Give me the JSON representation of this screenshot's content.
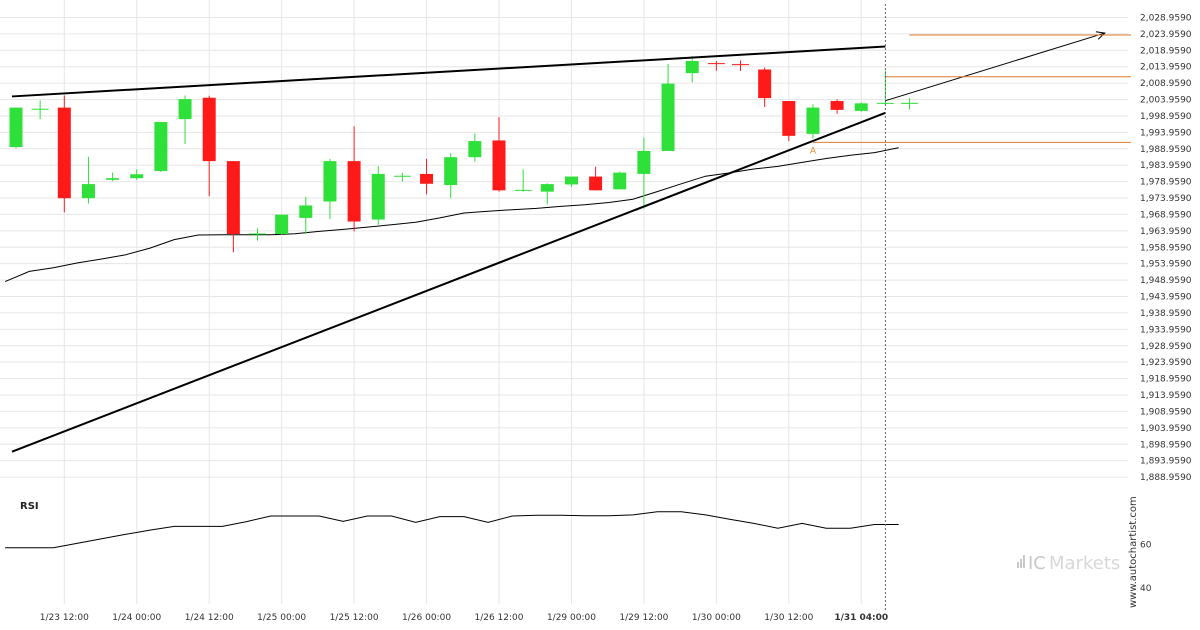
{
  "chart_data": {
    "type": "candlestick",
    "xlabel": "",
    "ylabel": "",
    "ylim": [
      1883.959,
      2031.959
    ],
    "y_ticks": [
      "2,028.9590",
      "2,023.9590",
      "2,018.9590",
      "2,013.9590",
      "2,008.9590",
      "2,003.9590",
      "1,998.9590",
      "1,993.9590",
      "1,988.9590",
      "1,983.9590",
      "1,978.9590",
      "1,973.9590",
      "1,968.9590",
      "1,963.9590",
      "1,958.9590",
      "1,953.9590",
      "1,948.9590",
      "1,943.9590",
      "1,938.9590",
      "1,933.9590",
      "1,928.9590",
      "1,923.9590",
      "1,918.9590",
      "1,913.9590",
      "1,908.9590",
      "1,903.9590",
      "1,898.9590",
      "1,893.9590",
      "1,888.9590"
    ],
    "y_tick_values": [
      2028.959,
      2023.959,
      2018.959,
      2013.959,
      2008.959,
      2003.959,
      1998.959,
      1993.959,
      1988.959,
      1983.959,
      1978.959,
      1973.959,
      1968.959,
      1963.959,
      1958.959,
      1953.959,
      1948.959,
      1943.959,
      1938.959,
      1933.959,
      1928.959,
      1923.959,
      1918.959,
      1913.959,
      1908.959,
      1903.959,
      1898.959,
      1893.959,
      1888.959
    ],
    "x_ticks": [
      {
        "label": "1/23 12:00",
        "index": 2
      },
      {
        "label": "1/24 00:00",
        "index": 5
      },
      {
        "label": "1/24 12:00",
        "index": 8
      },
      {
        "label": "1/25 00:00",
        "index": 11
      },
      {
        "label": "1/25 12:00",
        "index": 14
      },
      {
        "label": "1/26 00:00",
        "index": 17
      },
      {
        "label": "1/26 12:00",
        "index": 20
      },
      {
        "label": "1/29 00:00",
        "index": 23
      },
      {
        "label": "1/29 12:00",
        "index": 26
      },
      {
        "label": "1/30 00:00",
        "index": 29
      },
      {
        "label": "1/30 12:00",
        "index": 32
      },
      {
        "label": "1/31 04:00",
        "index": 35,
        "bold": true
      }
    ],
    "candles": [
      {
        "o": 1989.5,
        "h": 2001.5,
        "l": 1989.0,
        "c": 2001.5
      },
      {
        "o": 2001.0,
        "h": 2003.7,
        "l": 1998.0,
        "c": 2001.0
      },
      {
        "o": 2001.5,
        "h": 2005.2,
        "l": 1969.6,
        "c": 1973.9
      },
      {
        "o": 1973.9,
        "h": 1986.5,
        "l": 1972.3,
        "c": 1978.2
      },
      {
        "o": 1979.5,
        "h": 1981.7,
        "l": 1979.1,
        "c": 1980.0
      },
      {
        "o": 1980.0,
        "h": 1982.7,
        "l": 1979.5,
        "c": 1981.2
      },
      {
        "o": 1982.2,
        "h": 1997.1,
        "l": 1981.9,
        "c": 1997.1
      },
      {
        "o": 1998.0,
        "h": 2005.2,
        "l": 1990.4,
        "c": 2004.1
      },
      {
        "o": 2004.5,
        "h": 2005.1,
        "l": 1974.5,
        "c": 1985.2
      },
      {
        "o": 1985.2,
        "h": 1985.2,
        "l": 1957.4,
        "c": 1963.0
      },
      {
        "o": 1963.0,
        "h": 1964.7,
        "l": 1961.0,
        "c": 1963.0
      },
      {
        "o": 1963.0,
        "h": 1968.9,
        "l": 1962.8,
        "c": 1968.9
      },
      {
        "o": 1967.9,
        "h": 1974.3,
        "l": 1963.0,
        "c": 1971.7
      },
      {
        "o": 1972.9,
        "h": 1985.9,
        "l": 1967.5,
        "c": 1985.2
      },
      {
        "o": 1985.2,
        "h": 1995.8,
        "l": 1963.8,
        "c": 1966.8
      },
      {
        "o": 1967.4,
        "h": 1983.7,
        "l": 1965.8,
        "c": 1981.3
      },
      {
        "o": 1980.6,
        "h": 1981.7,
        "l": 1979.0,
        "c": 1980.6
      },
      {
        "o": 1981.3,
        "h": 1985.9,
        "l": 1975.1,
        "c": 1978.3
      },
      {
        "o": 1977.9,
        "h": 1987.6,
        "l": 1974.0,
        "c": 1986.4
      },
      {
        "o": 1986.4,
        "h": 1993.6,
        "l": 1985.0,
        "c": 1991.3
      },
      {
        "o": 1991.5,
        "h": 1998.6,
        "l": 1975.9,
        "c": 1976.3
      },
      {
        "o": 1976.3,
        "h": 1982.7,
        "l": 1975.9,
        "c": 1976.3
      },
      {
        "o": 1975.9,
        "h": 1978.4,
        "l": 1972.0,
        "c": 1978.2
      },
      {
        "o": 1978.1,
        "h": 1980.5,
        "l": 1977.3,
        "c": 1980.5
      },
      {
        "o": 1980.5,
        "h": 1983.5,
        "l": 1976.3,
        "c": 1976.3
      },
      {
        "o": 1976.6,
        "h": 1982.0,
        "l": 1976.6,
        "c": 1981.7
      },
      {
        "o": 1981.3,
        "h": 1992.4,
        "l": 1970.7,
        "c": 1988.3
      },
      {
        "o": 1988.3,
        "h": 2014.8,
        "l": 1988.3,
        "c": 2008.8
      },
      {
        "o": 2012.0,
        "h": 2017.2,
        "l": 2009.2,
        "c": 2015.7
      },
      {
        "o": 2014.9,
        "h": 2015.7,
        "l": 2012.7,
        "c": 2014.6
      },
      {
        "o": 2014.6,
        "h": 2015.9,
        "l": 2012.7,
        "c": 2014.3
      },
      {
        "o": 2013.1,
        "h": 2013.7,
        "l": 2001.7,
        "c": 2004.4
      },
      {
        "o": 2003.5,
        "h": 2003.5,
        "l": 1991.3,
        "c": 1992.9
      },
      {
        "o": 1993.5,
        "h": 2002.5,
        "l": 1992.1,
        "c": 2001.5
      },
      {
        "o": 2003.5,
        "h": 2004.0,
        "l": 1999.6,
        "c": 2000.8
      },
      {
        "o": 2000.5,
        "h": 2003.1,
        "l": 2000.2,
        "c": 2002.8
      },
      {
        "o": 2002.8,
        "h": 2012.8,
        "l": 2002.3,
        "c": 2002.8
      },
      {
        "o": 2002.8,
        "h": 2004.4,
        "l": 2000.9,
        "c": 2002.8
      }
    ],
    "ma_line": [
      1948.5,
      1951.6,
      1952.7,
      1954.2,
      1955.4,
      1956.7,
      1958.7,
      1961.3,
      1962.7,
      1962.8,
      1962.8,
      1962.8,
      1963.1,
      1963.8,
      1964.4,
      1965.1,
      1965.8,
      1966.6,
      1967.9,
      1969.4,
      1969.9,
      1970.4,
      1970.8,
      1971.4,
      1971.9,
      1972.6,
      1973.6,
      1975.9,
      1978.3,
      1980.6,
      1981.6,
      1982.8,
      1983.6,
      1984.8,
      1986.0,
      1987.0,
      1987.8,
      1989.3
    ],
    "support_line": {
      "from": [
        0,
        1896.7
      ],
      "to": [
        36,
        1999.9
      ]
    },
    "resistance_line": {
      "from": [
        0,
        2004.9
      ],
      "to": [
        36,
        2020.1
      ]
    },
    "projection_arrow": {
      "from": [
        36,
        2003.6
      ],
      "to": [
        45,
        2024.2
      ]
    },
    "levels": [
      {
        "value": 2023.6,
        "from_index": 37
      },
      {
        "value": 2010.9,
        "from_index": 36
      },
      {
        "value": 1990.9,
        "from_index": 33
      }
    ],
    "marker": {
      "label": "A",
      "index": 33,
      "value": 1990.2
    },
    "current_index": 36,
    "rsi": {
      "label": "RSI",
      "ylim": [
        30,
        85
      ],
      "ticks": [
        "60",
        "40"
      ],
      "tick_values": [
        60,
        40
      ],
      "values": [
        58.5,
        58.5,
        58.5,
        60.6,
        62.7,
        64.7,
        66.6,
        68.3,
        68.3,
        68.3,
        70.5,
        73.1,
        73.1,
        73.1,
        70.6,
        73.1,
        73.1,
        70.2,
        72.8,
        72.8,
        70.2,
        73.1,
        73.4,
        73.4,
        73.2,
        73.2,
        73.6,
        75.0,
        75.0,
        73.6,
        71.6,
        69.7,
        67.5,
        69.7,
        67.5,
        67.5,
        69.2,
        69.2
      ]
    },
    "colors": {
      "bull": "#2fe03a",
      "bear": "#ff1a1a",
      "line": "#000000",
      "level": "#e07a2a",
      "grid": "#e6e6e6",
      "dashed": "#666666"
    }
  },
  "watermark": "www.autochartist.com",
  "brand": {
    "ic": "IC",
    "rest": "Markets"
  }
}
